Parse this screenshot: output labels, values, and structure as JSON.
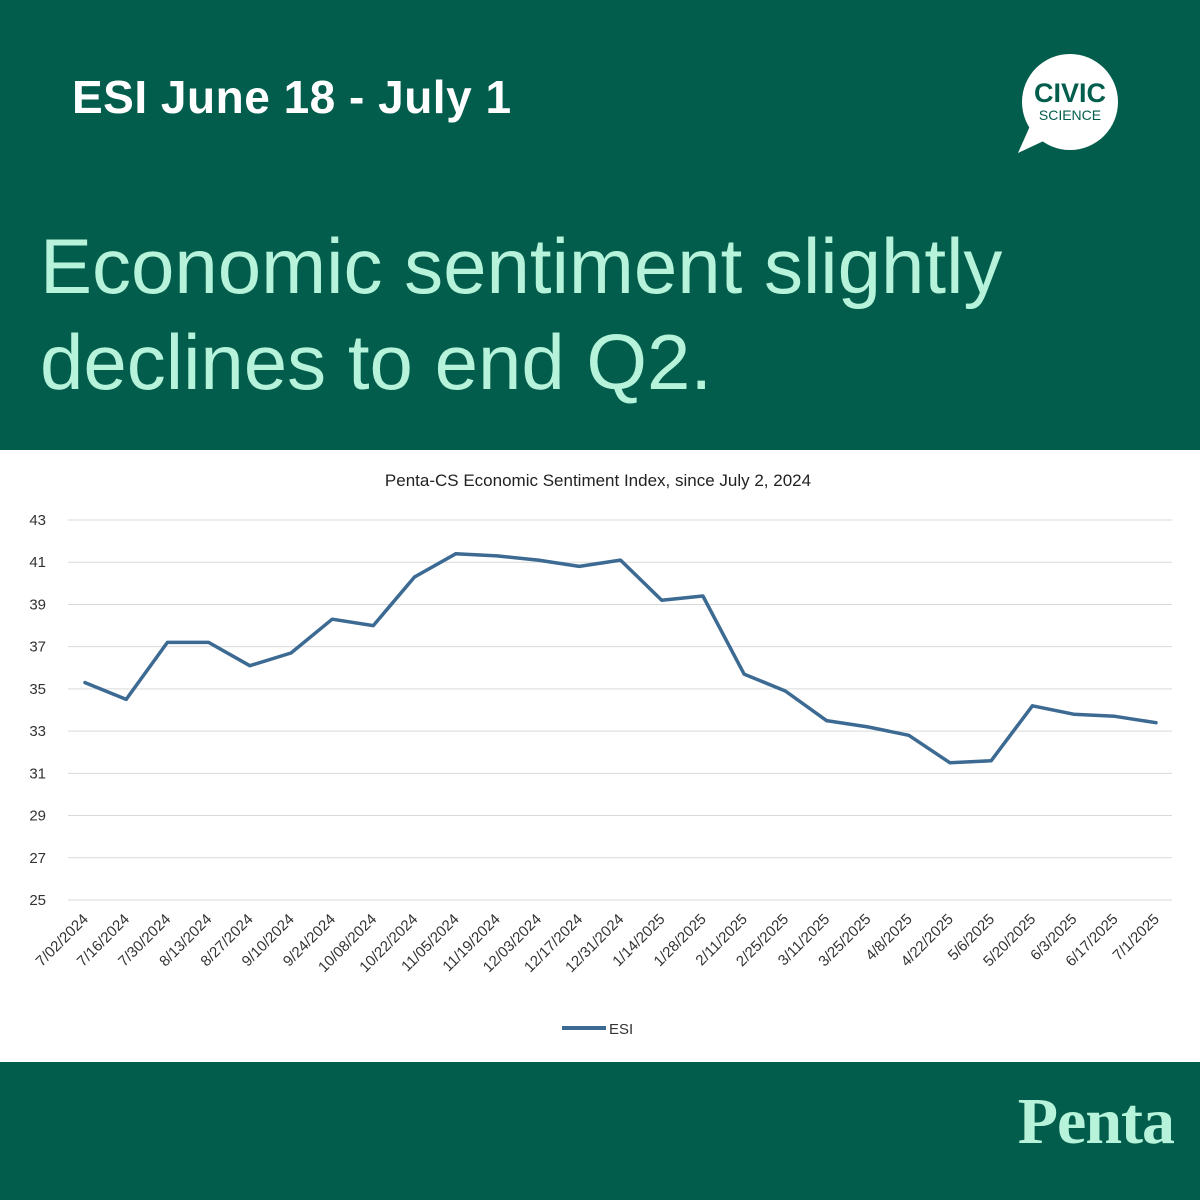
{
  "header": {
    "period": "ESI June 18 - July 1",
    "logo_line1": "CIVIC",
    "logo_line2": "SCIENCE",
    "headline_line1": "Economic sentiment slightly",
    "headline_line2": "declines to end Q2."
  },
  "footer": {
    "brand": "Penta"
  },
  "colors": {
    "background": "#035d4c",
    "headline": "#b6f3da",
    "line": "#3c6a92"
  },
  "chart_data": {
    "type": "line",
    "title": "Penta-CS Economic Sentiment Index, since July 2, 2024",
    "xlabel": "",
    "ylabel": "",
    "ylim": [
      25,
      43
    ],
    "yticks": [
      25,
      27,
      29,
      31,
      33,
      35,
      37,
      39,
      41,
      43
    ],
    "grid": true,
    "legend_position": "bottom-center",
    "categories": [
      "7/02/2024",
      "7/16/2024",
      "7/30/2024",
      "8/13/2024",
      "8/27/2024",
      "9/10/2024",
      "9/24/2024",
      "10/08/2024",
      "10/22/2024",
      "11/05/2024",
      "11/19/2024",
      "12/03/2024",
      "12/17/2024",
      "12/31/2024",
      "1/14/2025",
      "1/28/2025",
      "2/11/2025",
      "2/25/2025",
      "3/11/2025",
      "3/25/2025",
      "4/8/2025",
      "4/22/2025",
      "5/6/2025",
      "5/20/2025",
      "6/3/2025",
      "6/17/2025",
      "7/1/2025"
    ],
    "series": [
      {
        "name": "ESI",
        "values": [
          35.3,
          34.5,
          37.2,
          37.2,
          36.1,
          36.7,
          38.3,
          38.0,
          40.3,
          41.4,
          41.3,
          41.1,
          40.8,
          41.1,
          39.2,
          39.4,
          35.7,
          34.9,
          33.5,
          33.2,
          32.8,
          31.5,
          31.6,
          34.2,
          33.8,
          33.7,
          33.4
        ]
      }
    ]
  }
}
